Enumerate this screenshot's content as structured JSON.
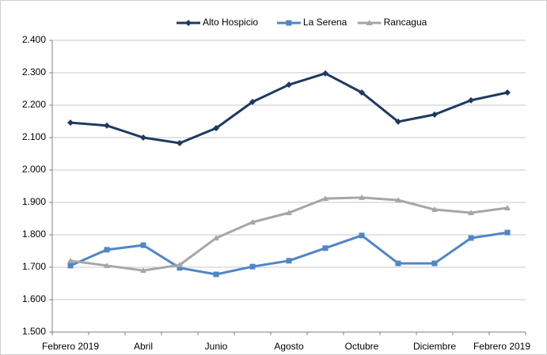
{
  "chart_data": {
    "type": "line",
    "categories": [
      "Febrero 2019",
      null,
      "Abril",
      null,
      "Junio",
      null,
      "Agosto",
      null,
      "Octubre",
      null,
      "Diciembre",
      null,
      "Febrero 2019"
    ],
    "series": [
      {
        "name": "Alto Hospicio",
        "color": "#1f3a5f",
        "marker": "diamond",
        "values": [
          2146,
          2137,
          2100,
          2083,
          2129,
          2210,
          2263,
          2298,
          2239,
          2149,
          2171,
          2215,
          2239
        ]
      },
      {
        "name": "La Serena",
        "color": "#4f86c6",
        "marker": "square",
        "values": [
          1705,
          1754,
          1768,
          1698,
          1678,
          1702,
          1720,
          1759,
          1798,
          1712,
          1712,
          1790,
          1807
        ]
      },
      {
        "name": "Rancagua",
        "color": "#a6a6a6",
        "marker": "triangle",
        "values": [
          1720,
          1705,
          1690,
          1707,
          1790,
          1839,
          1868,
          1912,
          1915,
          1907,
          1878,
          1868,
          1883
        ]
      }
    ],
    "ylim": [
      1500,
      2400
    ],
    "yticks": [
      {
        "value": 1500,
        "label": "1.500"
      },
      {
        "value": 1600,
        "label": "1.600"
      },
      {
        "value": 1700,
        "label": "1.700"
      },
      {
        "value": 1800,
        "label": "1.800"
      },
      {
        "value": 1900,
        "label": "1.900"
      },
      {
        "value": 2000,
        "label": "2.000"
      },
      {
        "value": 2100,
        "label": "2.100"
      },
      {
        "value": 2200,
        "label": "2.200"
      },
      {
        "value": 2300,
        "label": "2.300"
      },
      {
        "value": 2400,
        "label": "2.400"
      }
    ],
    "grid": true,
    "legend": "top"
  }
}
